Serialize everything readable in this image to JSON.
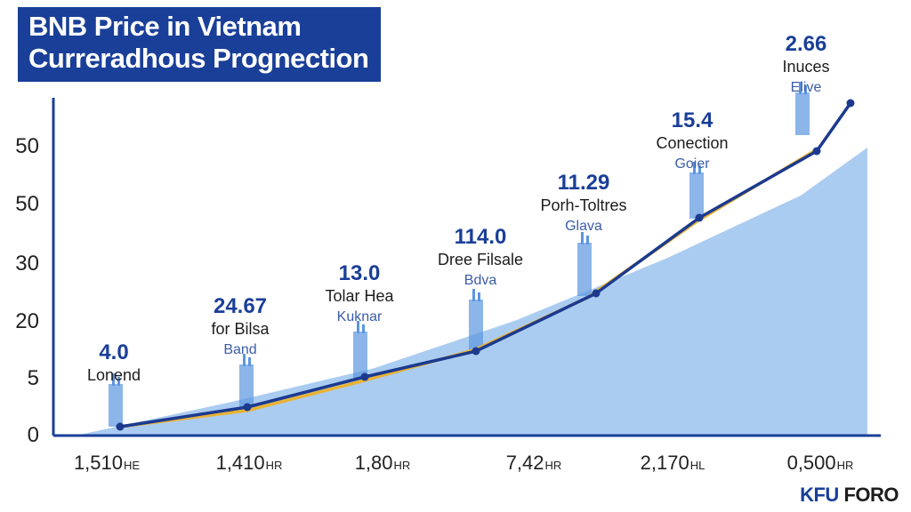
{
  "title_lines": [
    "BNB Price in Vietnam",
    "Curreradhous Prognection"
  ],
  "brand": {
    "part1": "KFU",
    "part2": " FORO"
  },
  "colors": {
    "title_bg": "#1a3f98",
    "axis": "#1a3f98",
    "area": "#9cc3ee",
    "dark_line": "#1b3a8f",
    "yellow_line": "#e9b233",
    "bar": "#5b95df",
    "value_label": "#1a3f98"
  },
  "chart_data": {
    "type": "line",
    "title": "BNB Price in Vietnam Curreradhous Prognection",
    "xlabel": "",
    "ylabel": "",
    "grid": false,
    "y_tick_labels": [
      "0",
      "5",
      "20",
      "30",
      "50",
      "50"
    ],
    "x_tick_labels": [
      "1,510",
      "1,410",
      "1,80",
      "7,42",
      "2,170",
      "0,500"
    ],
    "x_tick_suffixes": [
      "HE",
      "HR",
      "HR",
      "HR",
      "HL",
      "HR"
    ],
    "point_labels": [
      {
        "value": "4.0",
        "caption": "Lonend",
        "sub": ""
      },
      {
        "value": "24.67",
        "caption": "for Bilsa",
        "sub": "Band"
      },
      {
        "value": "13.0",
        "caption": "Tolar Hea",
        "sub": "Kuknar"
      },
      {
        "value": "114.0",
        "caption": "Dree Filsale",
        "sub": "Bdva"
      },
      {
        "value": "11.29",
        "caption": "Porh-Toltres",
        "sub": "Glava"
      },
      {
        "value": "15.4",
        "caption": "Conection",
        "sub": "Goier"
      },
      {
        "value": "2.66",
        "caption": "Inuces",
        "sub": "Elive"
      }
    ],
    "series": [
      {
        "values": [
          1,
          5,
          10,
          15,
          24,
          38,
          50,
          58
        ]
      },
      {
        "values": [
          1,
          4.5,
          9.5,
          15,
          23,
          35,
          48
        ]
      }
    ],
    "area": {
      "values": [
        0,
        7,
        14,
        24,
        37,
        50,
        60
      ]
    },
    "bar_heights": [
      5,
      5,
      6,
      7,
      8,
      6,
      5
    ]
  }
}
